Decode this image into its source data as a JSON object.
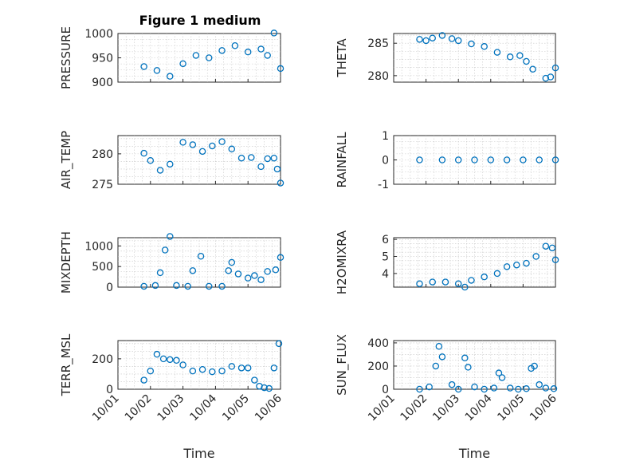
{
  "figure": {
    "title": "Figure 1 medium"
  },
  "colors": {
    "marker": "#0072bd"
  },
  "x_axis": {
    "tick_labels": [
      "10/01",
      "10/02",
      "10/03",
      "10/04",
      "10/05",
      "10/06"
    ],
    "range": [
      0,
      5
    ],
    "label": "Time"
  },
  "chart_data": [
    {
      "type": "scatter",
      "ylabel": "PRESSURE",
      "ylim": [
        900,
        1000
      ],
      "yticks": [
        900,
        950,
        1000
      ],
      "yticklabels": [
        "900",
        "950",
        "1000"
      ],
      "x": [
        0.8,
        1.2,
        1.6,
        2.0,
        2.4,
        2.8,
        3.2,
        3.6,
        4.0,
        4.4,
        4.6,
        4.8,
        5.0
      ],
      "y": [
        932,
        924,
        912,
        938,
        955,
        950,
        965,
        975,
        962,
        968,
        955,
        1001,
        928
      ]
    },
    {
      "type": "scatter",
      "ylabel": "THETA",
      "ylim": [
        279,
        286.5
      ],
      "yticks": [
        280,
        285
      ],
      "yticklabels": [
        "280",
        "285"
      ],
      "x": [
        0.8,
        1.0,
        1.2,
        1.5,
        1.8,
        2.0,
        2.4,
        2.8,
        3.2,
        3.6,
        3.9,
        4.1,
        4.3,
        4.7,
        4.85,
        5.0
      ],
      "y": [
        285.6,
        285.4,
        285.8,
        286.2,
        285.7,
        285.4,
        284.9,
        284.5,
        283.6,
        282.9,
        283.1,
        282.2,
        281.0,
        279.6,
        279.8,
        281.2
      ]
    },
    {
      "type": "scatter",
      "ylabel": "AIR_TEMP",
      "ylim": [
        275,
        283
      ],
      "yticks": [
        275,
        280
      ],
      "yticklabels": [
        "275",
        "280"
      ],
      "x": [
        0.8,
        1.0,
        1.3,
        1.6,
        2.0,
        2.3,
        2.6,
        2.9,
        3.2,
        3.5,
        3.8,
        4.1,
        4.4,
        4.6,
        4.8,
        4.9,
        5.0
      ],
      "y": [
        280.1,
        278.9,
        277.3,
        278.3,
        281.9,
        281.5,
        280.4,
        281.3,
        282.0,
        280.8,
        279.3,
        279.4,
        277.9,
        279.2,
        279.3,
        277.5,
        275.2
      ]
    },
    {
      "type": "scatter",
      "ylabel": "RAINFALL",
      "ylim": [
        -1,
        1
      ],
      "yticks": [
        -1,
        0,
        1
      ],
      "yticklabels": [
        "-1",
        "0",
        "1"
      ],
      "x": [
        0.8,
        1.5,
        2.0,
        2.5,
        3.0,
        3.5,
        4.0,
        4.5,
        5.0
      ],
      "y": [
        0,
        0,
        0,
        0,
        0,
        0,
        0,
        0,
        0
      ]
    },
    {
      "type": "scatter",
      "ylabel": "MIXDEPTH",
      "ylim": [
        0,
        1200
      ],
      "yticks": [
        0,
        500,
        1000
      ],
      "yticklabels": [
        "0",
        "500",
        "1000"
      ],
      "x": [
        0.8,
        1.15,
        1.3,
        1.45,
        1.6,
        1.8,
        2.15,
        2.3,
        2.55,
        2.8,
        3.2,
        3.4,
        3.5,
        3.7,
        4.0,
        4.2,
        4.4,
        4.6,
        4.85,
        5.0
      ],
      "y": [
        20,
        40,
        350,
        900,
        1230,
        40,
        20,
        400,
        750,
        20,
        20,
        400,
        600,
        320,
        220,
        280,
        180,
        380,
        420,
        720
      ]
    },
    {
      "type": "scatter",
      "ylabel": "H2OMIXRA",
      "ylim": [
        3.2,
        6.1
      ],
      "yticks": [
        4,
        5,
        6
      ],
      "yticklabels": [
        "4",
        "5",
        "6"
      ],
      "x": [
        0.8,
        1.2,
        1.6,
        2.0,
        2.2,
        2.4,
        2.8,
        3.2,
        3.5,
        3.8,
        4.1,
        4.4,
        4.7,
        4.9,
        5.0
      ],
      "y": [
        3.4,
        3.5,
        3.5,
        3.4,
        3.2,
        3.6,
        3.8,
        4.0,
        4.4,
        4.5,
        4.6,
        5.0,
        5.6,
        5.5,
        4.8
      ]
    },
    {
      "type": "scatter",
      "ylabel": "TERR_MSL",
      "ylim": [
        0,
        320
      ],
      "yticks": [
        0,
        200
      ],
      "yticklabels": [
        "0",
        "200"
      ],
      "x": [
        0.8,
        1.0,
        1.2,
        1.4,
        1.6,
        1.8,
        2.0,
        2.3,
        2.6,
        2.9,
        3.2,
        3.5,
        3.8,
        4.0,
        4.2,
        4.35,
        4.5,
        4.65,
        4.8,
        4.95
      ],
      "y": [
        60,
        120,
        230,
        200,
        195,
        190,
        160,
        120,
        130,
        115,
        120,
        150,
        140,
        140,
        60,
        20,
        10,
        5,
        140,
        300
      ]
    },
    {
      "type": "scatter",
      "ylabel": "SUN_FLUX",
      "ylim": [
        0,
        420
      ],
      "yticks": [
        0,
        200,
        400
      ],
      "yticklabels": [
        "0",
        "200",
        "400"
      ],
      "x": [
        0.8,
        1.1,
        1.3,
        1.4,
        1.5,
        1.8,
        2.0,
        2.2,
        2.3,
        2.5,
        2.8,
        3.1,
        3.25,
        3.35,
        3.6,
        3.85,
        4.1,
        4.25,
        4.35,
        4.5,
        4.7,
        4.95
      ],
      "y": [
        0,
        20,
        200,
        370,
        280,
        40,
        0,
        270,
        190,
        20,
        0,
        10,
        140,
        100,
        10,
        0,
        5,
        180,
        200,
        40,
        10,
        5
      ]
    }
  ]
}
